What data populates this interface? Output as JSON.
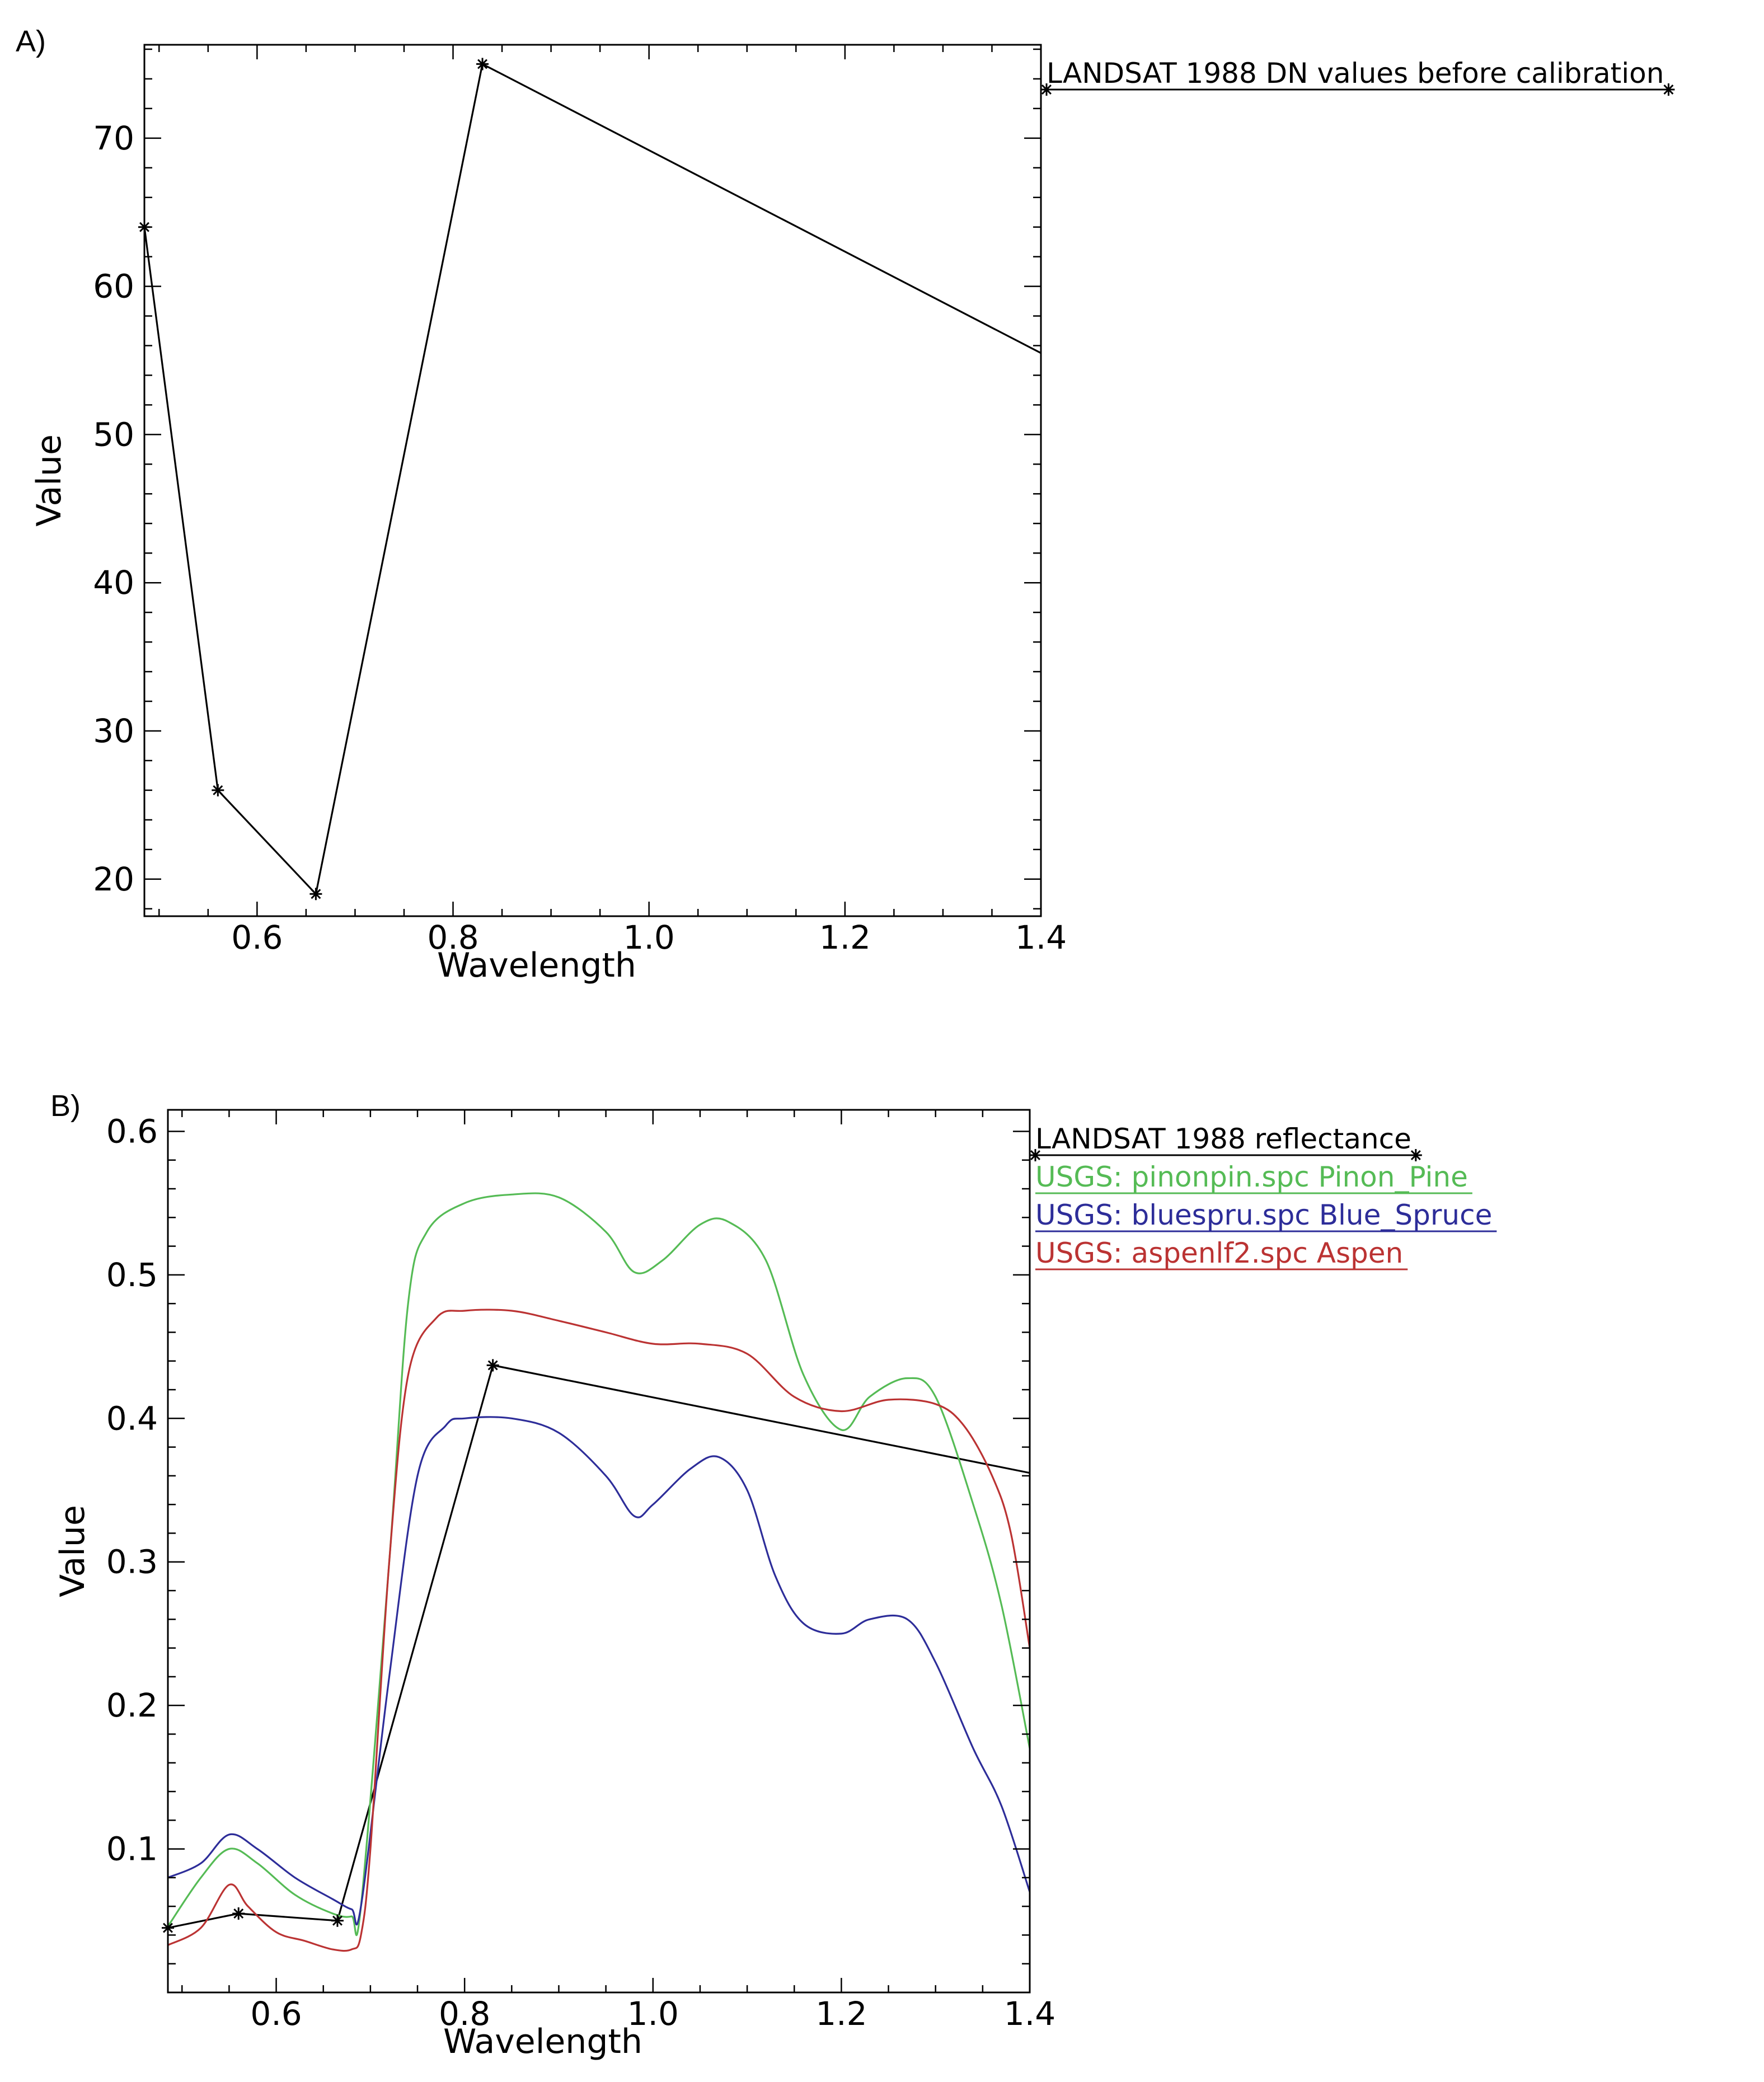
{
  "panels": [
    {
      "label": "A)"
    },
    {
      "label": "B)"
    }
  ],
  "chart_data": [
    {
      "type": "line",
      "xlabel": "Wavelength",
      "ylabel": "Value",
      "xlim": [
        0.485,
        1.4
      ],
      "ylim": [
        17.5,
        76.3
      ],
      "xticks": [
        0.6,
        0.8,
        1.0,
        1.2,
        1.4
      ],
      "xtick_labels": [
        "0.6",
        "0.8",
        "1.0",
        "1.2",
        "1.4"
      ],
      "yticks": [
        20,
        30,
        40,
        50,
        60,
        70
      ],
      "ytick_labels": [
        "20",
        "30",
        "40",
        "50",
        "60",
        "70"
      ],
      "legend_position": "outside-top-right",
      "series": [
        {
          "name": "LANDSAT 1988 DN values before calibration",
          "color": "#000000",
          "marker": "asterisk",
          "x": [
            0.485,
            0.56,
            0.66,
            0.83,
            1.4
          ],
          "y": [
            64,
            26,
            19,
            75,
            55.5
          ],
          "marker_x": [
            0.485,
            0.56,
            0.66,
            0.83
          ]
        }
      ]
    },
    {
      "type": "line",
      "xlabel": "Wavelength",
      "ylabel": "Value",
      "xlim": [
        0.485,
        1.4
      ],
      "ylim": [
        0.0,
        0.615
      ],
      "xticks": [
        0.6,
        0.8,
        1.0,
        1.2,
        1.4
      ],
      "xtick_labels": [
        "0.6",
        "0.8",
        "1.0",
        "1.2",
        "1.4"
      ],
      "yticks": [
        0.1,
        0.2,
        0.3,
        0.4,
        0.5,
        0.6
      ],
      "ytick_labels": [
        "0.1",
        "0.2",
        "0.3",
        "0.4",
        "0.5",
        "0.6"
      ],
      "legend_position": "outside-top-right",
      "series": [
        {
          "name": "LANDSAT 1988 reflectance",
          "color": "#000000",
          "marker": "asterisk",
          "smooth": false,
          "x": [
            0.485,
            0.56,
            0.665,
            0.83,
            1.4
          ],
          "y": [
            0.045,
            0.055,
            0.05,
            0.437,
            0.362
          ],
          "marker_x": [
            0.485,
            0.56,
            0.665,
            0.83
          ]
        },
        {
          "name": "USGS: pinonpin.spc Pinon_Pine",
          "color": "#55bb55",
          "smooth": true,
          "x": [
            0.485,
            0.52,
            0.55,
            0.58,
            0.62,
            0.66,
            0.68,
            0.69,
            0.72,
            0.74,
            0.76,
            0.8,
            0.85,
            0.9,
            0.95,
            0.98,
            1.01,
            1.05,
            1.08,
            1.12,
            1.16,
            1.2,
            1.23,
            1.27,
            1.3,
            1.34,
            1.37,
            1.4
          ],
          "y": [
            0.046,
            0.08,
            0.1,
            0.09,
            0.068,
            0.055,
            0.053,
            0.06,
            0.3,
            0.48,
            0.53,
            0.55,
            0.556,
            0.554,
            0.53,
            0.502,
            0.51,
            0.535,
            0.537,
            0.51,
            0.43,
            0.392,
            0.415,
            0.428,
            0.415,
            0.34,
            0.27,
            0.17
          ]
        },
        {
          "name": "USGS: bluespru.spc Blue_Spruce",
          "color": "#2d2d99",
          "smooth": true,
          "x": [
            0.485,
            0.52,
            0.55,
            0.58,
            0.62,
            0.66,
            0.68,
            0.69,
            0.72,
            0.75,
            0.78,
            0.8,
            0.85,
            0.9,
            0.95,
            0.98,
            1.0,
            1.04,
            1.07,
            1.1,
            1.13,
            1.16,
            1.2,
            1.23,
            1.27,
            1.3,
            1.34,
            1.37,
            1.4
          ],
          "y": [
            0.08,
            0.09,
            0.11,
            0.1,
            0.08,
            0.065,
            0.058,
            0.06,
            0.22,
            0.36,
            0.395,
            0.4,
            0.4,
            0.39,
            0.36,
            0.332,
            0.34,
            0.365,
            0.373,
            0.35,
            0.29,
            0.257,
            0.25,
            0.26,
            0.26,
            0.23,
            0.17,
            0.13,
            0.07
          ]
        },
        {
          "name": "USGS: aspenlf2.spc Aspen",
          "color": "#bb3333",
          "smooth": true,
          "x": [
            0.485,
            0.52,
            0.55,
            0.57,
            0.6,
            0.63,
            0.66,
            0.68,
            0.69,
            0.7,
            0.72,
            0.74,
            0.77,
            0.8,
            0.85,
            0.9,
            0.95,
            1.0,
            1.05,
            1.1,
            1.15,
            1.2,
            1.25,
            1.3,
            1.33,
            1.36,
            1.38,
            1.4
          ],
          "y": [
            0.033,
            0.045,
            0.075,
            0.06,
            0.042,
            0.036,
            0.03,
            0.03,
            0.04,
            0.1,
            0.3,
            0.43,
            0.47,
            0.475,
            0.475,
            0.468,
            0.46,
            0.452,
            0.452,
            0.445,
            0.415,
            0.405,
            0.413,
            0.41,
            0.395,
            0.36,
            0.32,
            0.24
          ]
        }
      ]
    }
  ]
}
